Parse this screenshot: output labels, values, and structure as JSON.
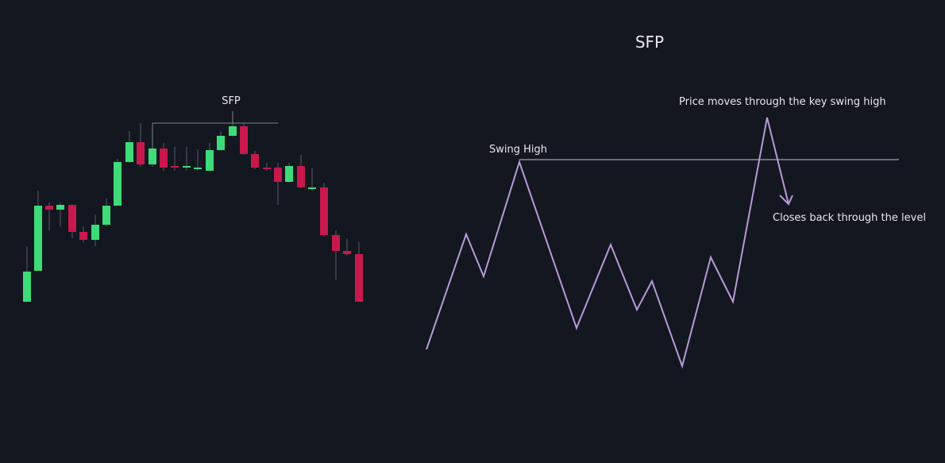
{
  "title": "SFP",
  "left_chart": {
    "bracket_label": "SFP"
  },
  "right_chart": {
    "swing_high_label": "Swing High",
    "break_label": "Price moves through the key swing high",
    "close_label": "Closes back through the level"
  }
}
